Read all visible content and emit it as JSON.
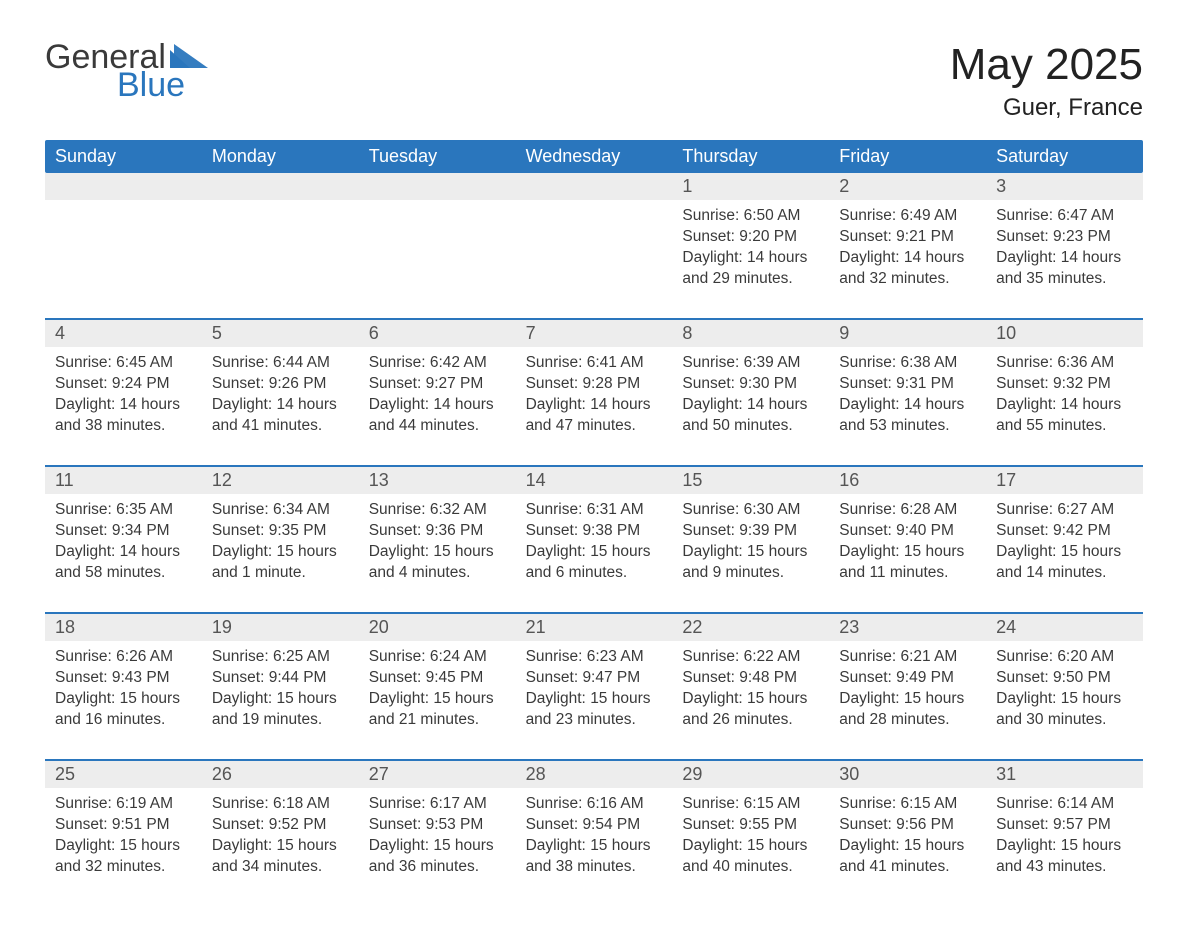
{
  "brand": {
    "word1": "General",
    "word2": "Blue",
    "color_text": "#3a3a3a",
    "color_accent": "#2a76bd"
  },
  "title": "May 2025",
  "location": "Guer, France",
  "colors": {
    "header_bg": "#2a76bd",
    "header_text": "#ffffff",
    "daynum_bg": "#ededed",
    "rule": "#2a76bd",
    "body_text": "#3a3a3a",
    "page_bg": "#ffffff"
  },
  "typography": {
    "title_fontsize": 44,
    "subtitle_fontsize": 24,
    "dow_fontsize": 18,
    "cell_fontsize": 15.5
  },
  "days_of_week": [
    "Sunday",
    "Monday",
    "Tuesday",
    "Wednesday",
    "Thursday",
    "Friday",
    "Saturday"
  ],
  "weeks": [
    [
      null,
      null,
      null,
      null,
      {
        "n": "1",
        "sunrise": "6:50 AM",
        "sunset": "9:20 PM",
        "daylight": "14 hours and 29 minutes."
      },
      {
        "n": "2",
        "sunrise": "6:49 AM",
        "sunset": "9:21 PM",
        "daylight": "14 hours and 32 minutes."
      },
      {
        "n": "3",
        "sunrise": "6:47 AM",
        "sunset": "9:23 PM",
        "daylight": "14 hours and 35 minutes."
      }
    ],
    [
      {
        "n": "4",
        "sunrise": "6:45 AM",
        "sunset": "9:24 PM",
        "daylight": "14 hours and 38 minutes."
      },
      {
        "n": "5",
        "sunrise": "6:44 AM",
        "sunset": "9:26 PM",
        "daylight": "14 hours and 41 minutes."
      },
      {
        "n": "6",
        "sunrise": "6:42 AM",
        "sunset": "9:27 PM",
        "daylight": "14 hours and 44 minutes."
      },
      {
        "n": "7",
        "sunrise": "6:41 AM",
        "sunset": "9:28 PM",
        "daylight": "14 hours and 47 minutes."
      },
      {
        "n": "8",
        "sunrise": "6:39 AM",
        "sunset": "9:30 PM",
        "daylight": "14 hours and 50 minutes."
      },
      {
        "n": "9",
        "sunrise": "6:38 AM",
        "sunset": "9:31 PM",
        "daylight": "14 hours and 53 minutes."
      },
      {
        "n": "10",
        "sunrise": "6:36 AM",
        "sunset": "9:32 PM",
        "daylight": "14 hours and 55 minutes."
      }
    ],
    [
      {
        "n": "11",
        "sunrise": "6:35 AM",
        "sunset": "9:34 PM",
        "daylight": "14 hours and 58 minutes."
      },
      {
        "n": "12",
        "sunrise": "6:34 AM",
        "sunset": "9:35 PM",
        "daylight": "15 hours and 1 minute."
      },
      {
        "n": "13",
        "sunrise": "6:32 AM",
        "sunset": "9:36 PM",
        "daylight": "15 hours and 4 minutes."
      },
      {
        "n": "14",
        "sunrise": "6:31 AM",
        "sunset": "9:38 PM",
        "daylight": "15 hours and 6 minutes."
      },
      {
        "n": "15",
        "sunrise": "6:30 AM",
        "sunset": "9:39 PM",
        "daylight": "15 hours and 9 minutes."
      },
      {
        "n": "16",
        "sunrise": "6:28 AM",
        "sunset": "9:40 PM",
        "daylight": "15 hours and 11 minutes."
      },
      {
        "n": "17",
        "sunrise": "6:27 AM",
        "sunset": "9:42 PM",
        "daylight": "15 hours and 14 minutes."
      }
    ],
    [
      {
        "n": "18",
        "sunrise": "6:26 AM",
        "sunset": "9:43 PM",
        "daylight": "15 hours and 16 minutes."
      },
      {
        "n": "19",
        "sunrise": "6:25 AM",
        "sunset": "9:44 PM",
        "daylight": "15 hours and 19 minutes."
      },
      {
        "n": "20",
        "sunrise": "6:24 AM",
        "sunset": "9:45 PM",
        "daylight": "15 hours and 21 minutes."
      },
      {
        "n": "21",
        "sunrise": "6:23 AM",
        "sunset": "9:47 PM",
        "daylight": "15 hours and 23 minutes."
      },
      {
        "n": "22",
        "sunrise": "6:22 AM",
        "sunset": "9:48 PM",
        "daylight": "15 hours and 26 minutes."
      },
      {
        "n": "23",
        "sunrise": "6:21 AM",
        "sunset": "9:49 PM",
        "daylight": "15 hours and 28 minutes."
      },
      {
        "n": "24",
        "sunrise": "6:20 AM",
        "sunset": "9:50 PM",
        "daylight": "15 hours and 30 minutes."
      }
    ],
    [
      {
        "n": "25",
        "sunrise": "6:19 AM",
        "sunset": "9:51 PM",
        "daylight": "15 hours and 32 minutes."
      },
      {
        "n": "26",
        "sunrise": "6:18 AM",
        "sunset": "9:52 PM",
        "daylight": "15 hours and 34 minutes."
      },
      {
        "n": "27",
        "sunrise": "6:17 AM",
        "sunset": "9:53 PM",
        "daylight": "15 hours and 36 minutes."
      },
      {
        "n": "28",
        "sunrise": "6:16 AM",
        "sunset": "9:54 PM",
        "daylight": "15 hours and 38 minutes."
      },
      {
        "n": "29",
        "sunrise": "6:15 AM",
        "sunset": "9:55 PM",
        "daylight": "15 hours and 40 minutes."
      },
      {
        "n": "30",
        "sunrise": "6:15 AM",
        "sunset": "9:56 PM",
        "daylight": "15 hours and 41 minutes."
      },
      {
        "n": "31",
        "sunrise": "6:14 AM",
        "sunset": "9:57 PM",
        "daylight": "15 hours and 43 minutes."
      }
    ]
  ],
  "labels": {
    "sunrise": "Sunrise: ",
    "sunset": "Sunset: ",
    "daylight": "Daylight: "
  }
}
